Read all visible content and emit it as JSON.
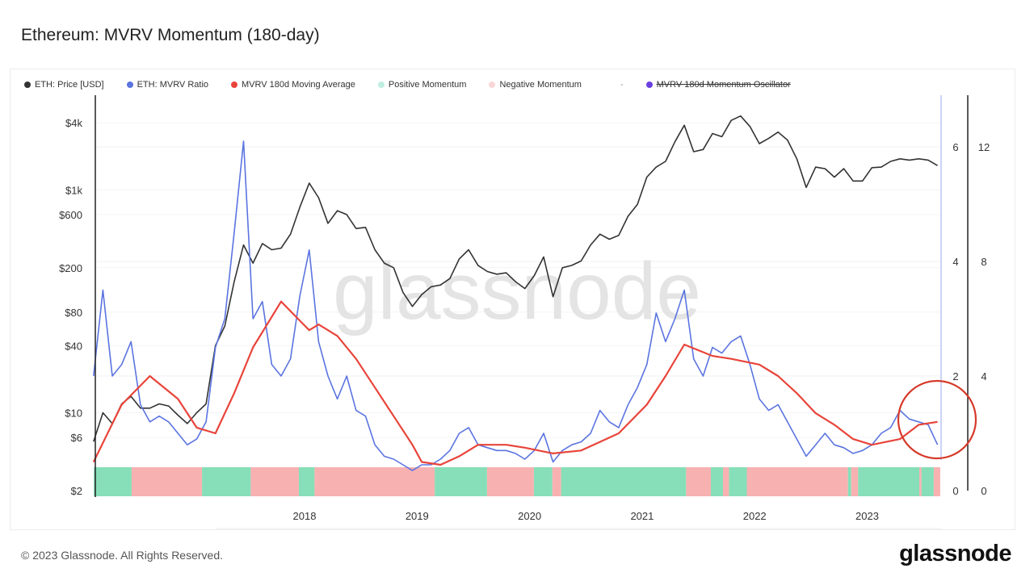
{
  "title": "Ethereum: MVRV Momentum (180-day)",
  "footer": {
    "copyright": "© 2023 Glassnode. All Rights Reserved.",
    "logo": "glassnode"
  },
  "watermark": "glassnode",
  "chart_data": {
    "type": "line",
    "legend": {
      "position": "top",
      "items": [
        {
          "name": "ETH: Price [USD]",
          "color": "#333333"
        },
        {
          "name": "ETH: MVRV Ratio",
          "color": "#5b74e0"
        },
        {
          "name": "MVRV 180d Moving Average",
          "color": "#e8443a"
        },
        {
          "name": "Positive Momentum",
          "color": "#bfeee0"
        },
        {
          "name": "Negative Momentum",
          "color": "#fbd6d6"
        },
        {
          "name": "-",
          "color": ""
        },
        {
          "name": "MVRV 180d Momentum Oscillator",
          "color": "#6a3fe0",
          "hidden": true
        }
      ]
    },
    "x_axis": {
      "ticks": [
        "2018",
        "2019",
        "2020",
        "2021",
        "2022",
        "2023"
      ],
      "range": [
        "2016-02",
        "2023-08"
      ]
    },
    "y_axis_left": {
      "scale": "log",
      "ticks": [
        "$2",
        "$6",
        "$10",
        "$40",
        "$80",
        "$200",
        "$600",
        "$1k",
        "$4k"
      ],
      "tick_values": [
        2,
        6,
        10,
        40,
        80,
        200,
        600,
        1000,
        4000
      ],
      "range": [
        2,
        4000
      ]
    },
    "y_axis_right_1": {
      "ticks": [
        "0",
        "2",
        "4",
        "6"
      ],
      "range": [
        0,
        6.93
      ]
    },
    "y_axis_right_2": {
      "ticks": [
        "0",
        "4",
        "8",
        "12"
      ],
      "range": [
        0,
        13.86
      ]
    },
    "grid": true,
    "series": [
      {
        "name": "ETH: Price [USD]",
        "axis": "left",
        "points": [
          [
            "2016-02",
            5.5
          ],
          [
            "2016-03",
            10
          ],
          [
            "2016-04",
            8
          ],
          [
            "2016-05",
            12
          ],
          [
            "2016-06",
            14
          ],
          [
            "2016-07",
            11
          ],
          [
            "2016-08",
            11
          ],
          [
            "2016-09",
            12
          ],
          [
            "2016-10",
            11.5
          ],
          [
            "2016-11",
            9.5
          ],
          [
            "2016-12",
            8
          ],
          [
            "2017-01",
            10
          ],
          [
            "2017-02",
            12
          ],
          [
            "2017-03",
            40
          ],
          [
            "2017-04",
            60
          ],
          [
            "2017-05",
            150
          ],
          [
            "2017-06",
            320
          ],
          [
            "2017-07",
            220
          ],
          [
            "2017-08",
            330
          ],
          [
            "2017-09",
            290
          ],
          [
            "2017-10",
            300
          ],
          [
            "2017-11",
            400
          ],
          [
            "2017-12",
            700
          ],
          [
            "2018-01",
            1150
          ],
          [
            "2018-02",
            850
          ],
          [
            "2018-03",
            500
          ],
          [
            "2018-04",
            650
          ],
          [
            "2018-05",
            600
          ],
          [
            "2018-06",
            450
          ],
          [
            "2018-07",
            460
          ],
          [
            "2018-08",
            290
          ],
          [
            "2018-09",
            220
          ],
          [
            "2018-10",
            200
          ],
          [
            "2018-11",
            120
          ],
          [
            "2018-12",
            90
          ],
          [
            "2019-01",
            115
          ],
          [
            "2019-02",
            135
          ],
          [
            "2019-03",
            140
          ],
          [
            "2019-04",
            160
          ],
          [
            "2019-05",
            240
          ],
          [
            "2019-06",
            290
          ],
          [
            "2019-07",
            210
          ],
          [
            "2019-08",
            185
          ],
          [
            "2019-09",
            175
          ],
          [
            "2019-10",
            180
          ],
          [
            "2019-11",
            150
          ],
          [
            "2019-12",
            130
          ],
          [
            "2020-01",
            170
          ],
          [
            "2020-02",
            250
          ],
          [
            "2020-03",
            110
          ],
          [
            "2020-04",
            200
          ],
          [
            "2020-05",
            210
          ],
          [
            "2020-06",
            230
          ],
          [
            "2020-07",
            320
          ],
          [
            "2020-08",
            400
          ],
          [
            "2020-09",
            360
          ],
          [
            "2020-10",
            390
          ],
          [
            "2020-11",
            580
          ],
          [
            "2020-12",
            740
          ],
          [
            "2021-01",
            1300
          ],
          [
            "2021-02",
            1600
          ],
          [
            "2021-03",
            1800
          ],
          [
            "2021-04",
            2700
          ],
          [
            "2021-05",
            3800
          ],
          [
            "2021-06",
            2200
          ],
          [
            "2021-07",
            2300
          ],
          [
            "2021-08",
            3200
          ],
          [
            "2021-09",
            3000
          ],
          [
            "2021-10",
            4200
          ],
          [
            "2021-11",
            4600
          ],
          [
            "2021-12",
            3700
          ],
          [
            "2022-01",
            2600
          ],
          [
            "2022-02",
            2900
          ],
          [
            "2022-03",
            3300
          ],
          [
            "2022-04",
            2800
          ],
          [
            "2022-05",
            1900
          ],
          [
            "2022-06",
            1050
          ],
          [
            "2022-07",
            1600
          ],
          [
            "2022-08",
            1550
          ],
          [
            "2022-09",
            1300
          ],
          [
            "2022-10",
            1550
          ],
          [
            "2022-11",
            1200
          ],
          [
            "2022-12",
            1200
          ],
          [
            "2023-01",
            1580
          ],
          [
            "2023-02",
            1600
          ],
          [
            "2023-03",
            1800
          ],
          [
            "2023-04",
            1900
          ],
          [
            "2023-05",
            1850
          ],
          [
            "2023-06",
            1900
          ],
          [
            "2023-07",
            1850
          ],
          [
            "2023-08",
            1650
          ]
        ]
      },
      {
        "name": "ETH: MVRV Ratio",
        "axis": "right_1",
        "points": [
          [
            "2016-02",
            2.0
          ],
          [
            "2016-03",
            3.5
          ],
          [
            "2016-04",
            2.0
          ],
          [
            "2016-05",
            2.2
          ],
          [
            "2016-06",
            2.6
          ],
          [
            "2016-07",
            1.5
          ],
          [
            "2016-08",
            1.2
          ],
          [
            "2016-09",
            1.3
          ],
          [
            "2016-10",
            1.2
          ],
          [
            "2016-11",
            1.0
          ],
          [
            "2016-12",
            0.8
          ],
          [
            "2017-01",
            0.9
          ],
          [
            "2017-02",
            1.2
          ],
          [
            "2017-03",
            2.5
          ],
          [
            "2017-04",
            3.0
          ],
          [
            "2017-05",
            4.5
          ],
          [
            "2017-06",
            6.1
          ],
          [
            "2017-07",
            3.0
          ],
          [
            "2017-08",
            3.3
          ],
          [
            "2017-09",
            2.2
          ],
          [
            "2017-10",
            2.0
          ],
          [
            "2017-11",
            2.3
          ],
          [
            "2017-12",
            3.4
          ],
          [
            "2018-01",
            4.2
          ],
          [
            "2018-02",
            2.6
          ],
          [
            "2018-03",
            2.0
          ],
          [
            "2018-04",
            1.6
          ],
          [
            "2018-05",
            2.0
          ],
          [
            "2018-06",
            1.4
          ],
          [
            "2018-07",
            1.3
          ],
          [
            "2018-08",
            0.8
          ],
          [
            "2018-09",
            0.6
          ],
          [
            "2018-10",
            0.55
          ],
          [
            "2018-11",
            0.45
          ],
          [
            "2018-12",
            0.35
          ],
          [
            "2019-01",
            0.45
          ],
          [
            "2019-02",
            0.45
          ],
          [
            "2019-03",
            0.55
          ],
          [
            "2019-04",
            0.7
          ],
          [
            "2019-05",
            1.0
          ],
          [
            "2019-06",
            1.1
          ],
          [
            "2019-07",
            0.8
          ],
          [
            "2019-08",
            0.75
          ],
          [
            "2019-09",
            0.7
          ],
          [
            "2019-10",
            0.7
          ],
          [
            "2019-11",
            0.65
          ],
          [
            "2019-12",
            0.55
          ],
          [
            "2020-01",
            0.7
          ],
          [
            "2020-02",
            1.0
          ],
          [
            "2020-03",
            0.5
          ],
          [
            "2020-04",
            0.7
          ],
          [
            "2020-05",
            0.8
          ],
          [
            "2020-06",
            0.85
          ],
          [
            "2020-07",
            1.0
          ],
          [
            "2020-08",
            1.4
          ],
          [
            "2020-09",
            1.2
          ],
          [
            "2020-10",
            1.1
          ],
          [
            "2020-11",
            1.5
          ],
          [
            "2020-12",
            1.8
          ],
          [
            "2021-01",
            2.2
          ],
          [
            "2021-02",
            3.1
          ],
          [
            "2021-03",
            2.6
          ],
          [
            "2021-04",
            3.0
          ],
          [
            "2021-05",
            3.5
          ],
          [
            "2021-06",
            2.3
          ],
          [
            "2021-07",
            2.0
          ],
          [
            "2021-08",
            2.5
          ],
          [
            "2021-09",
            2.4
          ],
          [
            "2021-10",
            2.6
          ],
          [
            "2021-11",
            2.7
          ],
          [
            "2021-12",
            2.2
          ],
          [
            "2022-01",
            1.6
          ],
          [
            "2022-02",
            1.4
          ],
          [
            "2022-03",
            1.5
          ],
          [
            "2022-04",
            1.2
          ],
          [
            "2022-05",
            0.9
          ],
          [
            "2022-06",
            0.6
          ],
          [
            "2022-07",
            0.8
          ],
          [
            "2022-08",
            1.0
          ],
          [
            "2022-09",
            0.8
          ],
          [
            "2022-10",
            0.75
          ],
          [
            "2022-11",
            0.65
          ],
          [
            "2022-12",
            0.7
          ],
          [
            "2023-01",
            0.8
          ],
          [
            "2023-02",
            1.0
          ],
          [
            "2023-03",
            1.1
          ],
          [
            "2023-04",
            1.4
          ],
          [
            "2023-05",
            1.25
          ],
          [
            "2023-06",
            1.2
          ],
          [
            "2023-07",
            1.15
          ],
          [
            "2023-08",
            0.8
          ]
        ]
      },
      {
        "name": "MVRV 180d Moving Average",
        "axis": "right_1",
        "points": [
          [
            "2016-02",
            0.5
          ],
          [
            "2016-05",
            1.5
          ],
          [
            "2016-08",
            2.0
          ],
          [
            "2016-11",
            1.6
          ],
          [
            "2017-01",
            1.1
          ],
          [
            "2017-03",
            1.0
          ],
          [
            "2017-05",
            1.7
          ],
          [
            "2017-07",
            2.5
          ],
          [
            "2017-10",
            3.3
          ],
          [
            "2018-01",
            2.8
          ],
          [
            "2018-02",
            2.9
          ],
          [
            "2018-04",
            2.7
          ],
          [
            "2018-06",
            2.3
          ],
          [
            "2018-08",
            1.8
          ],
          [
            "2018-10",
            1.3
          ],
          [
            "2018-12",
            0.8
          ],
          [
            "2019-01",
            0.5
          ],
          [
            "2019-03",
            0.45
          ],
          [
            "2019-05",
            0.6
          ],
          [
            "2019-07",
            0.8
          ],
          [
            "2019-10",
            0.8
          ],
          [
            "2019-12",
            0.75
          ],
          [
            "2020-03",
            0.65
          ],
          [
            "2020-06",
            0.7
          ],
          [
            "2020-08",
            0.85
          ],
          [
            "2020-10",
            1.0
          ],
          [
            "2021-01",
            1.5
          ],
          [
            "2021-03",
            2.0
          ],
          [
            "2021-05",
            2.55
          ],
          [
            "2021-08",
            2.35
          ],
          [
            "2021-10",
            2.3
          ],
          [
            "2022-01",
            2.2
          ],
          [
            "2022-03",
            2.0
          ],
          [
            "2022-05",
            1.7
          ],
          [
            "2022-07",
            1.35
          ],
          [
            "2022-09",
            1.15
          ],
          [
            "2022-11",
            0.9
          ],
          [
            "2023-01",
            0.8
          ],
          [
            "2023-04",
            0.9
          ],
          [
            "2023-06",
            1.15
          ],
          [
            "2023-08",
            1.2
          ]
        ]
      }
    ],
    "momentum_segments": [
      [
        "2016-02-17",
        "2016-06-18",
        "positive"
      ],
      [
        "2016-06-18",
        "2017-02-03",
        "negative"
      ],
      [
        "2017-02-03",
        "2017-07-09",
        "positive"
      ],
      [
        "2017-07-09",
        "2017-12-13",
        "negative"
      ],
      [
        "2017-12-13",
        "2018-02-03",
        "positive"
      ],
      [
        "2018-02-03",
        "2019-02-28",
        "negative"
      ],
      [
        "2019-02-28",
        "2019-08-15",
        "positive"
      ],
      [
        "2019-08-15",
        "2020-01-15",
        "negative"
      ],
      [
        "2020-01-15",
        "2020-03-14",
        "positive"
      ],
      [
        "2020-03-14",
        "2020-04-12",
        "negative"
      ],
      [
        "2020-04-12",
        "2021-05-22",
        "positive"
      ],
      [
        "2021-05-22",
        "2021-08-11",
        "negative"
      ],
      [
        "2021-08-11",
        "2021-09-20",
        "positive"
      ],
      [
        "2021-09-20",
        "2021-10-09",
        "negative"
      ],
      [
        "2021-10-09",
        "2021-12-06",
        "positive"
      ],
      [
        "2021-12-06",
        "2022-10-30",
        "negative"
      ],
      [
        "2022-10-30",
        "2022-11-10",
        "positive"
      ],
      [
        "2022-11-10",
        "2022-12-02",
        "negative"
      ],
      [
        "2022-12-02",
        "2023-06-18",
        "positive"
      ],
      [
        "2023-06-18",
        "2023-06-25",
        "negative"
      ],
      [
        "2023-06-25",
        "2023-08-04",
        "positive"
      ],
      [
        "2023-08-04",
        "2023-08-25",
        "negative"
      ]
    ],
    "colors": {
      "positive": "#86dfb8",
      "negative": "#f8b1b1",
      "price": "#333333",
      "mvrv": "#5b74e0",
      "ma": "#e8443a",
      "annotation": "#d63a2a"
    }
  }
}
